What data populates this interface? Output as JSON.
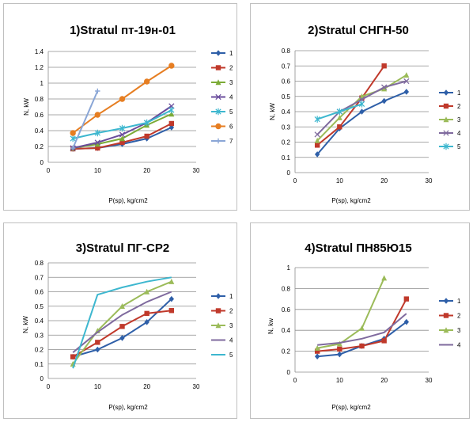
{
  "charts": [
    {
      "title": "1)Stratul пт-19н-01",
      "xlabel": "P(sp), kg/cm2",
      "ylabel": "N, kW",
      "x_ticks": [
        "0",
        "10",
        "20",
        "30"
      ],
      "y_ticks": [
        "0",
        "0.2",
        "0.4",
        "0.6",
        "0.8",
        "1",
        "1.2",
        "1.4"
      ]
    },
    {
      "title": "2)Stratul СНГН-50",
      "xlabel": "P(sp), kg/cm2",
      "ylabel": "N, kW",
      "x_ticks": [
        "0",
        "10",
        "20",
        "30"
      ],
      "y_ticks": [
        "0",
        "0.1",
        "0.2",
        "0.3",
        "0.4",
        "0.5",
        "0.6",
        "0.7",
        "0.8"
      ]
    },
    {
      "title": "3)Stratul ПГ-СР2",
      "xlabel": "P(sp), kg/cm2",
      "ylabel": "N, kW",
      "x_ticks": [
        "0",
        "10",
        "20",
        "30"
      ],
      "y_ticks": [
        "0",
        "0.1",
        "0.2",
        "0.3",
        "0.4",
        "0.5",
        "0.6",
        "0.7",
        "0.8"
      ]
    },
    {
      "title": "4)Stratul ПН85Ю15",
      "xlabel": "P(sp), kg/cm2",
      "ylabel": "N, kw",
      "x_ticks": [
        "0",
        "10",
        "20",
        "30"
      ],
      "y_ticks": [
        "0",
        "0.2",
        "0.4",
        "0.6",
        "0.8",
        "1"
      ]
    }
  ],
  "chart_data": [
    {
      "type": "line",
      "title": "1)Stratul пт-19н-01",
      "xlabel": "P(sp), kg/cm2",
      "ylabel": "N, kW",
      "xlim": [
        0,
        30
      ],
      "ylim": [
        0,
        1.4
      ],
      "y_step": 0.2,
      "grid": "horizontal",
      "legend": "right",
      "series": [
        {
          "name": "1",
          "color": "#2e5fa8",
          "marker": "diamond",
          "x": [
            5,
            10,
            15,
            20,
            25
          ],
          "y": [
            0.17,
            0.18,
            0.23,
            0.3,
            0.44
          ]
        },
        {
          "name": "2",
          "color": "#c0392b",
          "marker": "square",
          "x": [
            5,
            10,
            15,
            20,
            25
          ],
          "y": [
            0.17,
            0.18,
            0.25,
            0.33,
            0.49
          ]
        },
        {
          "name": "3",
          "color": "#7cab36",
          "marker": "triangle",
          "x": [
            5,
            10,
            15,
            20,
            25
          ],
          "y": [
            0.18,
            0.23,
            0.3,
            0.47,
            0.61
          ]
        },
        {
          "name": "4",
          "color": "#6a4c9c",
          "marker": "x",
          "x": [
            5,
            10,
            15,
            20,
            25
          ],
          "y": [
            0.18,
            0.25,
            0.35,
            0.5,
            0.71
          ]
        },
        {
          "name": "5",
          "color": "#3db7cf",
          "marker": "star",
          "x": [
            5,
            10,
            15,
            20,
            25
          ],
          "y": [
            0.3,
            0.37,
            0.43,
            0.5,
            0.66
          ]
        },
        {
          "name": "6",
          "color": "#e67e22",
          "marker": "circle",
          "x": [
            5,
            10,
            15,
            20,
            25
          ],
          "y": [
            0.37,
            0.6,
            0.8,
            1.02,
            1.22
          ]
        },
        {
          "name": "7",
          "color": "#8aa6d6",
          "marker": "plus",
          "x": [
            5,
            10
          ],
          "y": [
            0.18,
            0.9
          ]
        }
      ]
    },
    {
      "type": "line",
      "title": "2)Stratul СНГН-50",
      "xlabel": "P(sp), kg/cm2",
      "ylabel": "N, kW",
      "xlim": [
        0,
        30
      ],
      "ylim": [
        0,
        0.8
      ],
      "y_step": 0.1,
      "grid": "horizontal",
      "legend": "right",
      "series": [
        {
          "name": "1",
          "color": "#2e5fa8",
          "marker": "diamond",
          "x": [
            5,
            10,
            15,
            20,
            25
          ],
          "y": [
            0.12,
            0.29,
            0.4,
            0.47,
            0.53
          ]
        },
        {
          "name": "2",
          "color": "#c0392b",
          "marker": "square",
          "x": [
            5,
            10,
            15,
            20
          ],
          "y": [
            0.18,
            0.3,
            0.49,
            0.7
          ]
        },
        {
          "name": "3",
          "color": "#9bbb59",
          "marker": "triangle",
          "x": [
            5,
            10,
            15,
            20,
            25
          ],
          "y": [
            0.21,
            0.36,
            0.5,
            0.55,
            0.64
          ]
        },
        {
          "name": "4",
          "color": "#7f6a9e",
          "marker": "x",
          "x": [
            5,
            10,
            15,
            20,
            25
          ],
          "y": [
            0.25,
            0.4,
            0.48,
            0.56,
            0.6
          ]
        },
        {
          "name": "5",
          "color": "#3db7cf",
          "marker": "star",
          "x": [
            5,
            10,
            15
          ],
          "y": [
            0.35,
            0.4,
            0.45
          ]
        }
      ]
    },
    {
      "type": "line",
      "title": "3)Stratul ПГ-СР2",
      "xlabel": "P(sp), kg/cm2",
      "ylabel": "N, kW",
      "xlim": [
        0,
        30
      ],
      "ylim": [
        0,
        0.8
      ],
      "y_step": 0.1,
      "grid": "horizontal",
      "legend": "right",
      "series": [
        {
          "name": "1",
          "color": "#2e5fa8",
          "marker": "diamond",
          "x": [
            5,
            10,
            15,
            20,
            25
          ],
          "y": [
            0.15,
            0.2,
            0.28,
            0.39,
            0.55
          ]
        },
        {
          "name": "2",
          "color": "#c0392b",
          "marker": "square",
          "x": [
            5,
            10,
            15,
            20,
            25
          ],
          "y": [
            0.15,
            0.25,
            0.36,
            0.45,
            0.47
          ]
        },
        {
          "name": "3",
          "color": "#9bbb59",
          "marker": "triangle",
          "x": [
            5,
            10,
            15,
            20,
            25
          ],
          "y": [
            0.1,
            0.33,
            0.5,
            0.6,
            0.67
          ]
        },
        {
          "name": "4",
          "color": "#7f6a9e",
          "marker": "none",
          "x": [
            5,
            10,
            15,
            20,
            25
          ],
          "y": [
            0.18,
            0.32,
            0.44,
            0.53,
            0.6
          ]
        },
        {
          "name": "5",
          "color": "#3db7cf",
          "marker": "none",
          "x": [
            5,
            10,
            15,
            20,
            25
          ],
          "y": [
            0.07,
            0.58,
            0.63,
            0.67,
            0.7
          ]
        }
      ]
    },
    {
      "type": "line",
      "title": "4)Stratul ПН85Ю15",
      "xlabel": "P(sp), kg/cm2",
      "ylabel": "N, kw",
      "xlim": [
        0,
        30
      ],
      "ylim": [
        0,
        1
      ],
      "y_step": 0.2,
      "grid": "horizontal",
      "legend": "right",
      "series": [
        {
          "name": "1",
          "color": "#2e5fa8",
          "marker": "diamond",
          "x": [
            5,
            10,
            15,
            20,
            25
          ],
          "y": [
            0.15,
            0.17,
            0.25,
            0.32,
            0.48
          ]
        },
        {
          "name": "2",
          "color": "#c0392b",
          "marker": "square",
          "x": [
            5,
            10,
            15,
            20,
            25
          ],
          "y": [
            0.2,
            0.22,
            0.25,
            0.3,
            0.7
          ]
        },
        {
          "name": "3",
          "color": "#9bbb59",
          "marker": "triangle",
          "x": [
            5,
            10,
            15,
            20
          ],
          "y": [
            0.23,
            0.27,
            0.42,
            0.9
          ]
        },
        {
          "name": "4",
          "color": "#7f6a9e",
          "marker": "none",
          "x": [
            5,
            10,
            15,
            20,
            25
          ],
          "y": [
            0.26,
            0.28,
            0.32,
            0.38,
            0.56
          ]
        }
      ]
    }
  ]
}
